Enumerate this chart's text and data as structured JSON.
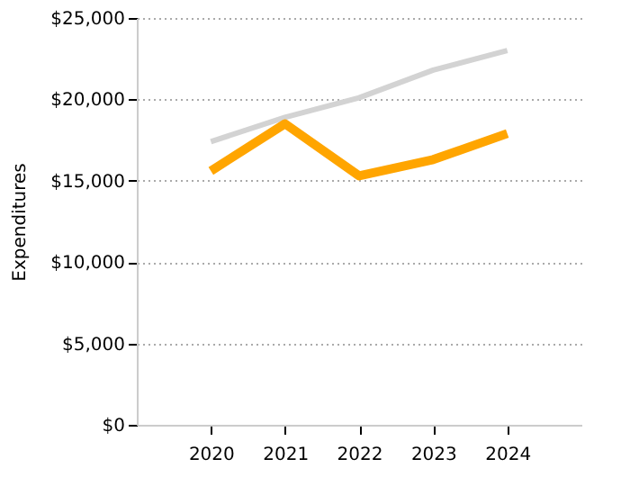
{
  "chart_data": {
    "type": "line",
    "ylabel": "Expenditures",
    "categories": [
      "2020",
      "2021",
      "2022",
      "2023",
      "2024"
    ],
    "series": [
      {
        "color": "#d3d3d3",
        "values": [
          17400,
          18900,
          20100,
          21800,
          23000
        ]
      },
      {
        "color": "#ffa500",
        "values": [
          15600,
          18500,
          15300,
          16300,
          17900
        ]
      }
    ],
    "ylim": [
      0,
      25000
    ],
    "yticks": [
      {
        "value": 0,
        "label": "$0"
      },
      {
        "value": 5000,
        "label": "$5,000"
      },
      {
        "value": 10000,
        "label": "$10,000"
      },
      {
        "value": 15000,
        "label": "$15,000"
      },
      {
        "value": 20000,
        "label": "$20,000"
      },
      {
        "value": 25000,
        "label": "$25,000"
      }
    ],
    "grid": "y",
    "legend": false
  }
}
